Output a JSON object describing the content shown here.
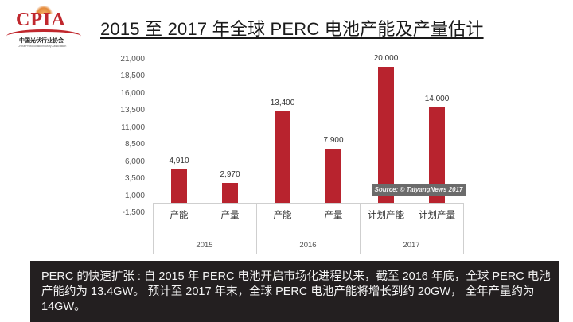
{
  "logo": {
    "acronym": "CPIA",
    "name_cn": "中国光伏行业协会",
    "name_en": "China Photovoltaic Industry Association"
  },
  "title": "2015 至 2017 年全球 PERC 电池产能及产量估计",
  "source_badge": "Source: © TaiyangNews 2017",
  "note": "PERC 的快速扩张 : 自 2015 年 PERC 电池开启市场化进程以来，截至 2016 年底，全球 PERC 电池产能约为 13.4GW。 预计至 2017 年末，全球 PERC 电池产能将增长到约 20GW， 全年产量约为 14GW。",
  "colors": {
    "bar": "#b8232e",
    "note_bg": "#231f20",
    "logo_red": "#c0272d"
  },
  "chart_data": {
    "type": "bar",
    "title": "2015 至 2017 年全球 PERC 电池产能及产量估计",
    "xlabel": "",
    "ylabel": "",
    "unit": "MW",
    "ylim": [
      -1500,
      21000
    ],
    "yticks": [
      "21,000",
      "18,500",
      "16,000",
      "13,500",
      "11,000",
      "8,500",
      "6,000",
      "3,500",
      "1,000",
      "-1,500"
    ],
    "grid": false,
    "legend": "none",
    "groups": [
      "2015",
      "2016",
      "2017"
    ],
    "categories": [
      "产能",
      "产量",
      "产能",
      "产量",
      "计划产能",
      "计划产量"
    ],
    "category_groups": [
      "2015",
      "2015",
      "2016",
      "2016",
      "2017",
      "2017"
    ],
    "values": [
      4910,
      2970,
      13400,
      7900,
      20000,
      14000
    ],
    "value_labels": [
      "4,910",
      "2,970",
      "13,400",
      "7,900",
      "20,000",
      "14,000"
    ],
    "annotations": [
      "Source: © TaiyangNews 2017"
    ]
  }
}
